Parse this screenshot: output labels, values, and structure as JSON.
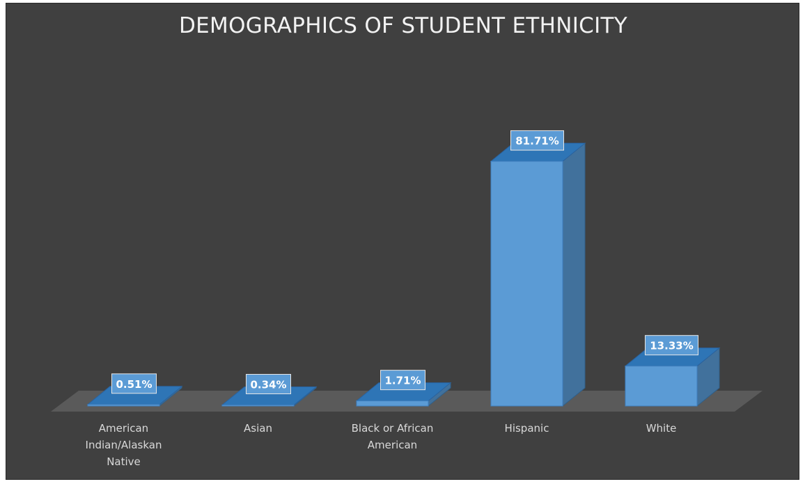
{
  "chart_data": {
    "type": "bar",
    "title": "DEMOGRAPHICS OF STUDENT ETHNICITY",
    "categories": [
      "American Indian/Alaskan Native",
      "Asian",
      "Black or African American",
      "Hispanic",
      "White"
    ],
    "category_lines": [
      [
        "American",
        "Indian/Alaskan",
        "Native"
      ],
      [
        "Asian"
      ],
      [
        "Black or African",
        "American"
      ],
      [
        "Hispanic"
      ],
      [
        "White"
      ]
    ],
    "values": [
      0.51,
      0.34,
      1.71,
      81.71,
      13.33
    ],
    "data_labels": [
      "0.51%",
      "0.34%",
      "1.71%",
      "81.71%",
      "13.33%"
    ],
    "ylim": [
      0,
      100
    ],
    "grid": false,
    "legend": "none",
    "colors": {
      "background": "#404040",
      "bar_front": "#5b9bd5",
      "bar_side": "#41719c",
      "bar_top": "#2e75b6",
      "floor": "#5a5a5a",
      "title": "#f2f2f2",
      "label": "#d9d9d9"
    }
  }
}
